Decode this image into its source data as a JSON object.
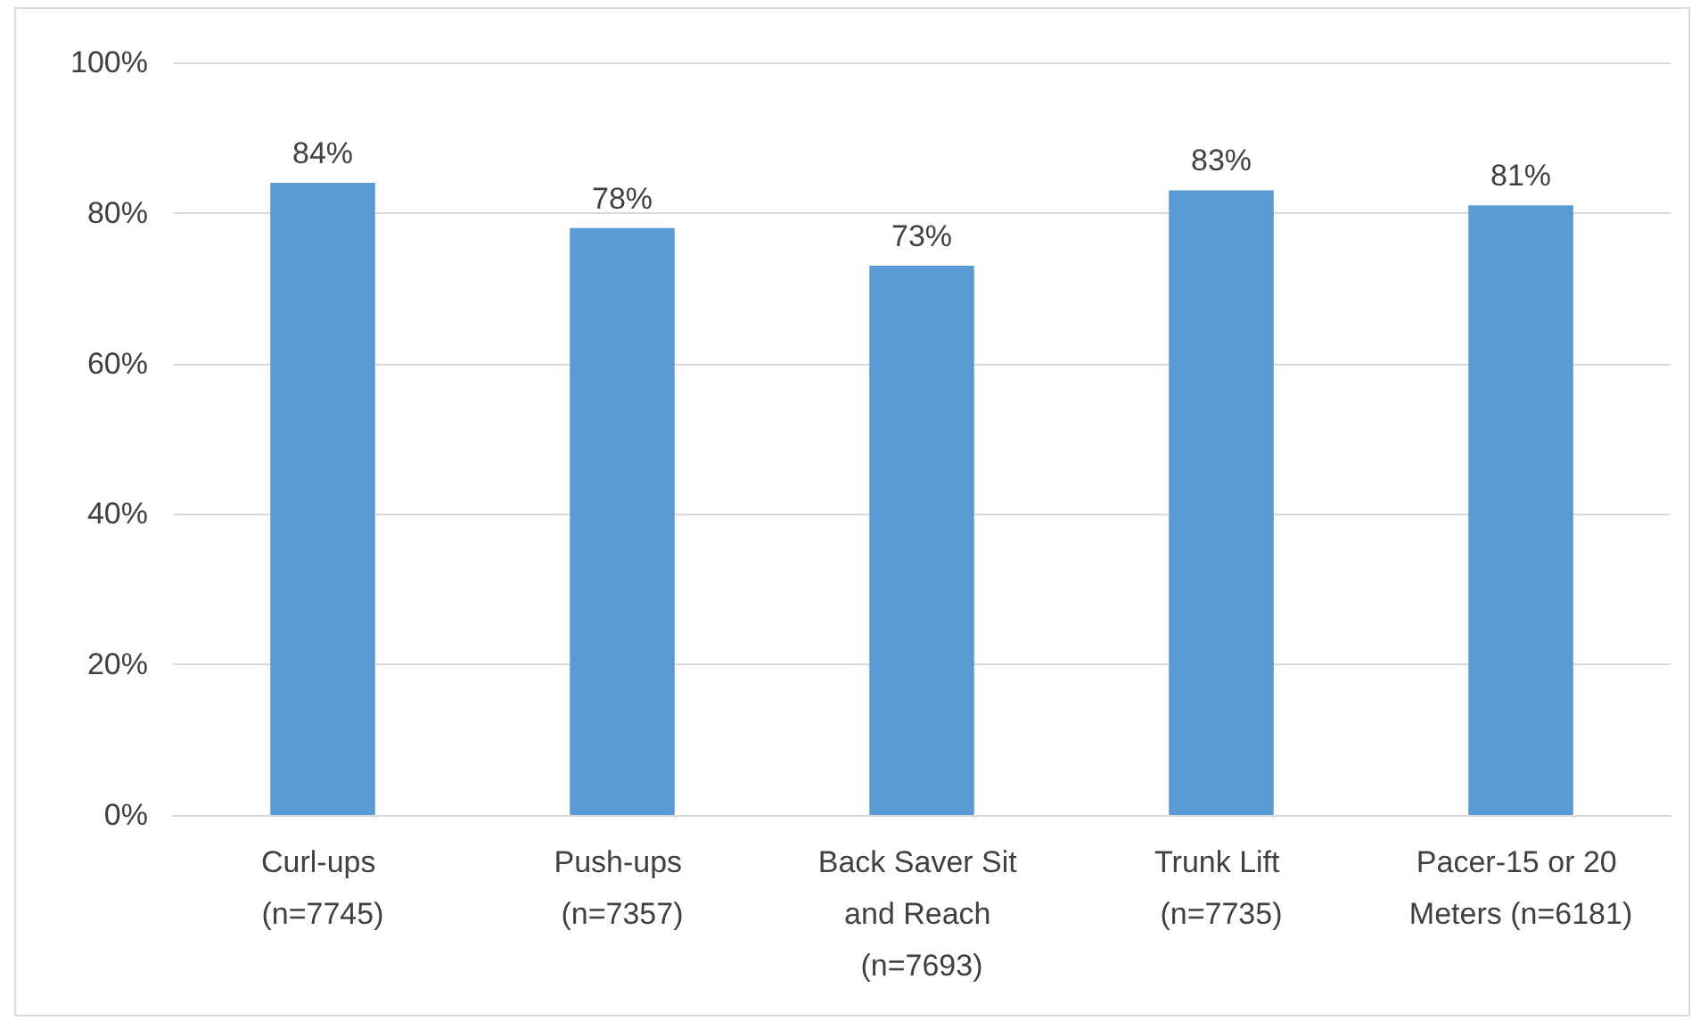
{
  "chart_data": {
    "type": "bar",
    "categories": [
      "Curl-ups (n=7745)",
      "Push-ups (n=7357)",
      "Back Saver Sit and Reach (n=7693)",
      "Trunk Lift (n=7735)",
      "Pacer-15 or 20 Meters (n=6181)"
    ],
    "values": [
      84,
      78,
      73,
      83,
      81
    ],
    "value_labels": [
      "84%",
      "78%",
      "73%",
      "83%",
      "81%"
    ],
    "color": "#5b9bd5",
    "ylim": [
      0,
      100
    ],
    "yticks": [
      {
        "value": 0,
        "label": "0%"
      },
      {
        "value": 20,
        "label": "20%"
      },
      {
        "value": 40,
        "label": "40%"
      },
      {
        "value": 60,
        "label": "60%"
      },
      {
        "value": 80,
        "label": "80%"
      },
      {
        "value": 100,
        "label": "100%"
      }
    ],
    "grid": "y"
  }
}
